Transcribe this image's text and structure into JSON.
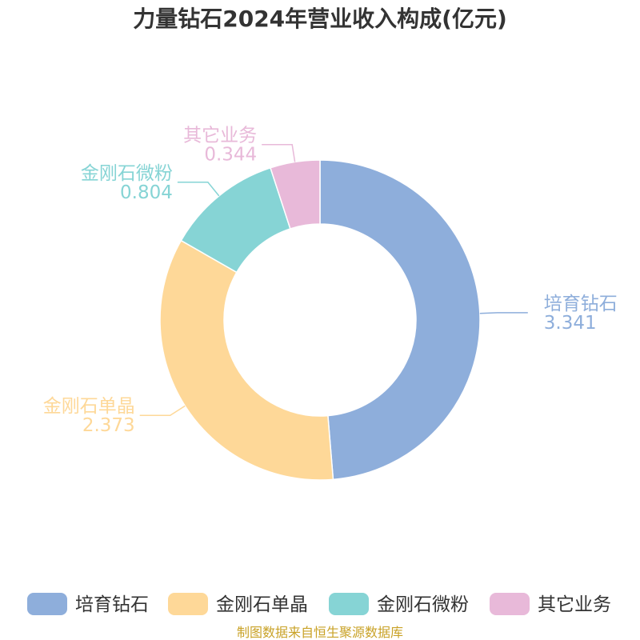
{
  "chart_data": {
    "type": "pie",
    "title": "力量钻石2024年营业收入构成(亿元)",
    "slices": [
      {
        "name": "培育钻石",
        "value": 3.341,
        "color": "#8eaedb"
      },
      {
        "name": "金刚石单晶",
        "value": 2.373,
        "color": "#fed898"
      },
      {
        "name": "金刚石微粉",
        "value": 0.804,
        "color": "#86d4d5"
      },
      {
        "name": "其它业务",
        "value": 0.344,
        "color": "#e8b9d9"
      }
    ],
    "legend_position": "bottom"
  },
  "source_text": "制图数据来自恒生聚源数据库"
}
